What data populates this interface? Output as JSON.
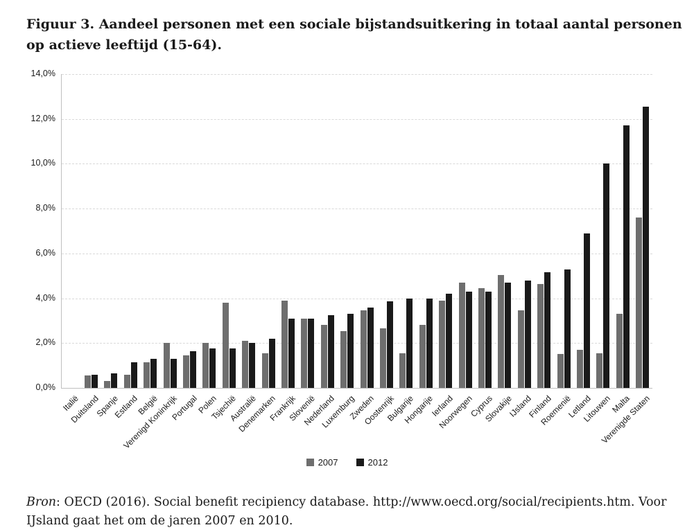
{
  "title": "Figuur 3. Aandeel personen met een sociale bijstandsuitkering in totaal aantal personen op actieve leeftijd (15-64).",
  "source": {
    "label": "Bron",
    "text": ": OECD (2016). Social benefit recipiency database. http://www.oecd.org/social/recipients.htm. Voor IJsland gaat het om de jaren 2007 en 2010."
  },
  "chart_data": {
    "type": "bar",
    "title": "Aandeel personen met een sociale bijstandsuitkering in totaal aantal personen op actieve leeftijd (15-64)",
    "categories": [
      "Italië",
      "Duitsland",
      "Spanje",
      "Estland",
      "België",
      "Verenigd Koninkrijk",
      "Portugal",
      "Polen",
      "Tsjechië",
      "Australië",
      "Denemarken",
      "Frankrijk",
      "Slovenië",
      "Nederland",
      "Luxemburg",
      "Zweden",
      "Oostenrijk",
      "Bulgarije",
      "Hongarije",
      "Ierland",
      "Noorwegen",
      "Cyprus",
      "Slovakije",
      "IJsland",
      "Finland",
      "Roemenië",
      "Letland",
      "Litouwen",
      "Malta",
      "Verenigde Staten"
    ],
    "series": [
      {
        "name": "2007",
        "color": "#6e6e6e",
        "values": [
          0.0,
          0.55,
          0.3,
          0.6,
          1.15,
          2.0,
          1.45,
          2.0,
          3.8,
          2.1,
          1.55,
          3.9,
          3.1,
          2.8,
          2.55,
          3.45,
          2.65,
          1.55,
          2.8,
          3.9,
          4.7,
          4.45,
          5.05,
          3.45,
          4.65,
          1.5,
          1.7,
          1.55,
          3.3,
          7.6
        ]
      },
      {
        "name": "2012",
        "color": "#1a1a1a",
        "values": [
          0.0,
          0.6,
          0.65,
          1.15,
          1.3,
          1.3,
          1.65,
          1.75,
          1.75,
          2.0,
          2.2,
          3.1,
          3.1,
          3.25,
          3.3,
          3.6,
          3.85,
          4.0,
          4.0,
          4.2,
          4.3,
          4.3,
          4.7,
          4.8,
          5.15,
          5.3,
          6.9,
          10.0,
          11.7,
          12.55
        ]
      }
    ],
    "xlabel": "",
    "ylabel": "",
    "ylim": [
      0,
      14
    ],
    "ytick_step": 2,
    "ytick_labels": [
      "0,0%",
      "2,0%",
      "4,0%",
      "6,0%",
      "8,0%",
      "10,0%",
      "12,0%",
      "14,0%"
    ],
    "grid": "horizontal-dashed",
    "legend_position": "bottom",
    "note": "Voor IJsland gaat het om de jaren 2007 en 2010"
  }
}
